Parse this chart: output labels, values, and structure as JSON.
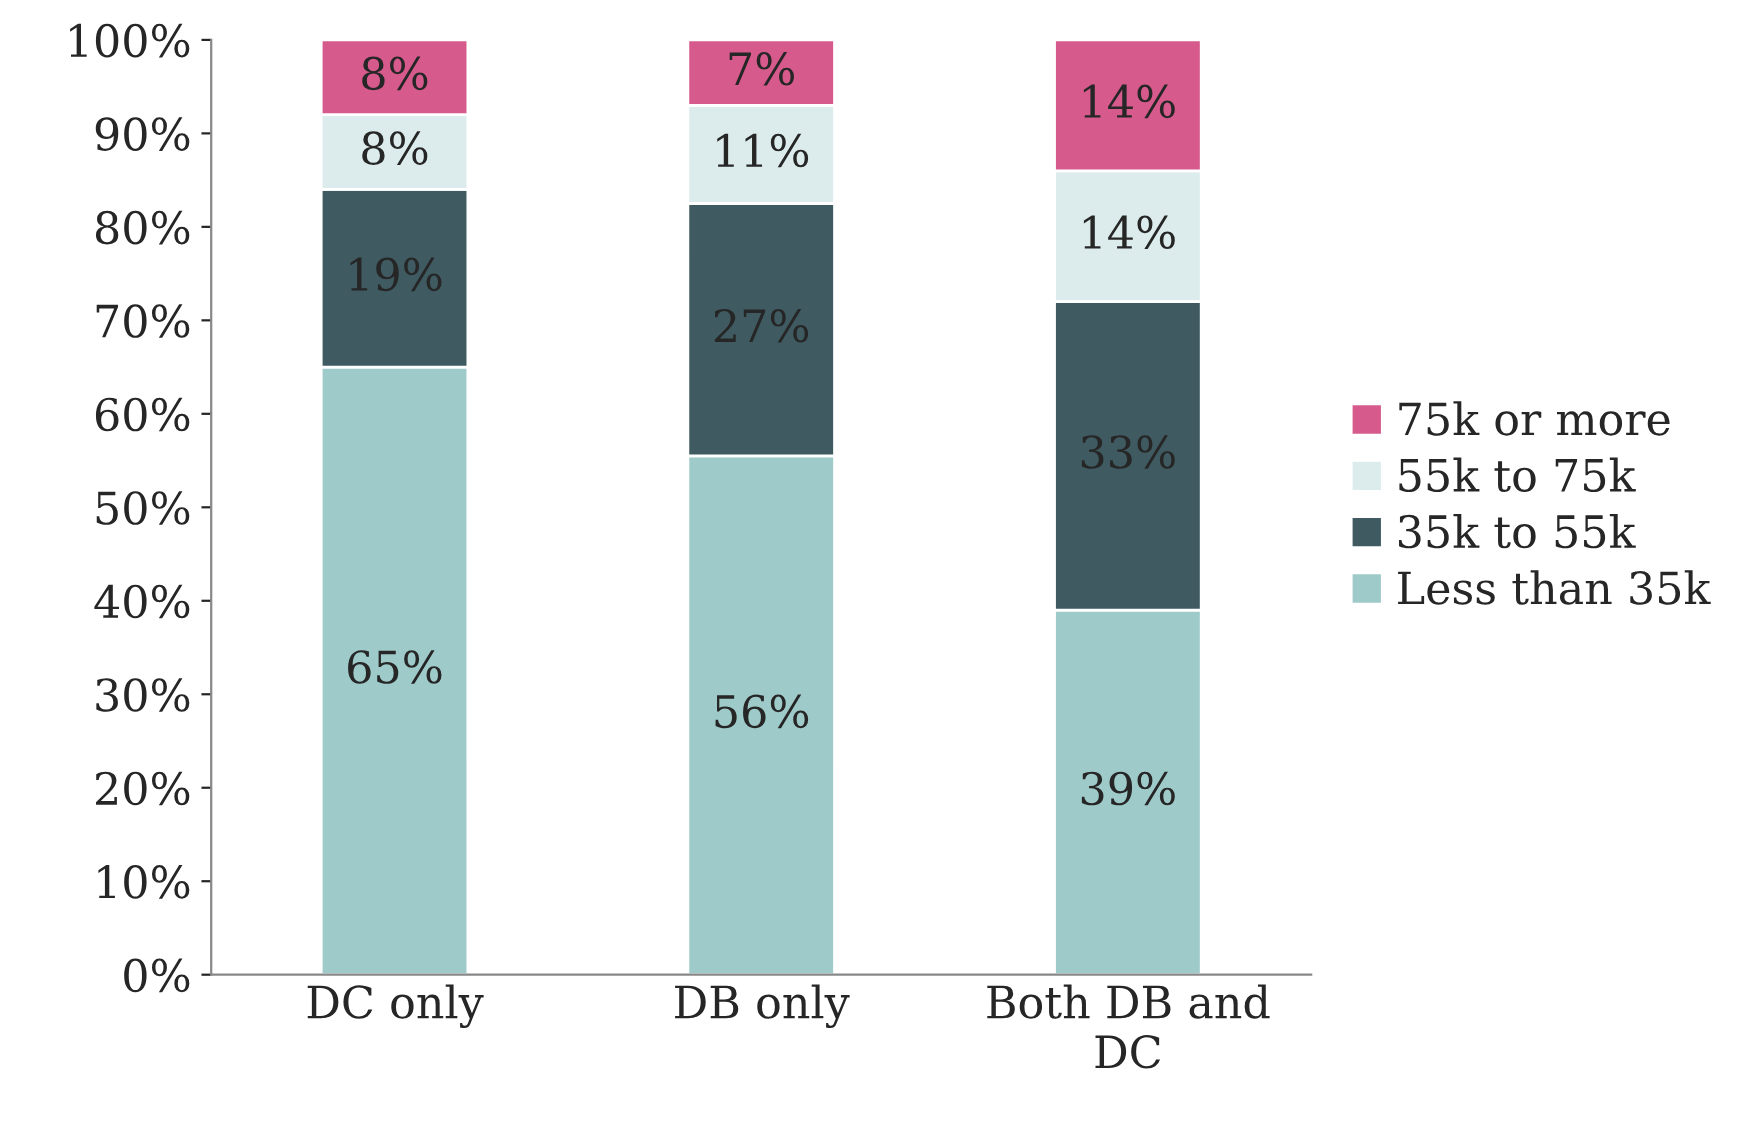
{
  "chart_data": {
    "type": "bar",
    "stacked": true,
    "categories": [
      "DC only",
      "DB only",
      "Both DB and\nDC"
    ],
    "series": [
      {
        "name": "Less than 35k",
        "color": "#9ecbca",
        "values": [
          65,
          55.5,
          39
        ],
        "value_labels": [
          "65%",
          "56%",
          "39%"
        ]
      },
      {
        "name": "35k to 55k",
        "color": "#3f5b61",
        "values": [
          19,
          27,
          33
        ],
        "value_labels": [
          "19%",
          "27%",
          "33%"
        ]
      },
      {
        "name": "55k to 75k",
        "color": "#dcecec",
        "values": [
          8,
          10.5,
          14
        ],
        "value_labels": [
          "8%",
          "11%",
          "14%"
        ]
      },
      {
        "name": "75k or more",
        "color": "#d65a8c",
        "values": [
          8,
          7,
          14
        ],
        "value_labels": [
          "8%",
          "7%",
          "14%"
        ]
      }
    ],
    "ylim": [
      0,
      100
    ],
    "yticks": [
      {
        "value": 0,
        "label": "0%"
      },
      {
        "value": 10,
        "label": "10%"
      },
      {
        "value": 20,
        "label": "20%"
      },
      {
        "value": 30,
        "label": "30%"
      },
      {
        "value": 40,
        "label": "40%"
      },
      {
        "value": 50,
        "label": "50%"
      },
      {
        "value": 60,
        "label": "60%"
      },
      {
        "value": 70,
        "label": "70%"
      },
      {
        "value": 80,
        "label": "80%"
      },
      {
        "value": 90,
        "label": "90%"
      },
      {
        "value": 100,
        "label": "100%"
      }
    ],
    "grid": false,
    "legend": "right"
  }
}
